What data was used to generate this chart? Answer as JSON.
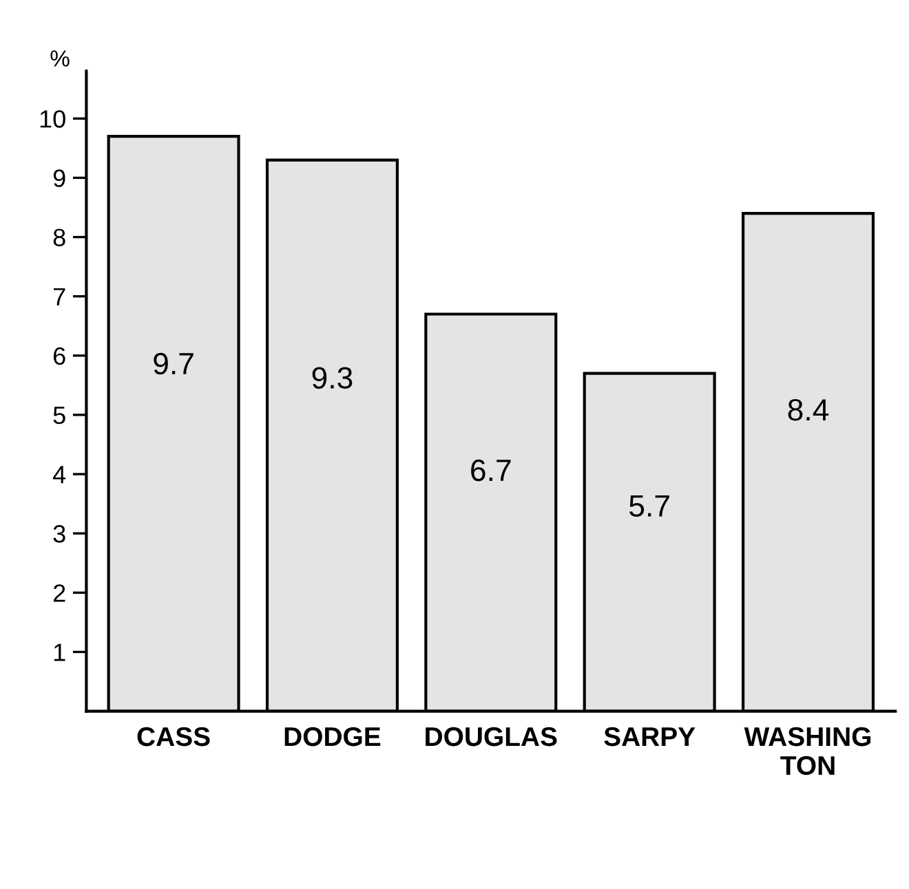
{
  "chart_data": {
    "type": "bar",
    "ylabel": "%",
    "categories": [
      "CASS",
      "DODGE",
      "DOUGLAS",
      "SARPY",
      "WASHING\nTON"
    ],
    "values": [
      9.7,
      9.3,
      6.7,
      5.7,
      8.4
    ],
    "color": "#e4e4e4",
    "ylim": [
      0,
      10.8
    ],
    "yticks": [
      1,
      2,
      3,
      4,
      5,
      6,
      7,
      8,
      9,
      10
    ],
    "data_labels": true,
    "grid": false,
    "tick_labels": "xy"
  }
}
